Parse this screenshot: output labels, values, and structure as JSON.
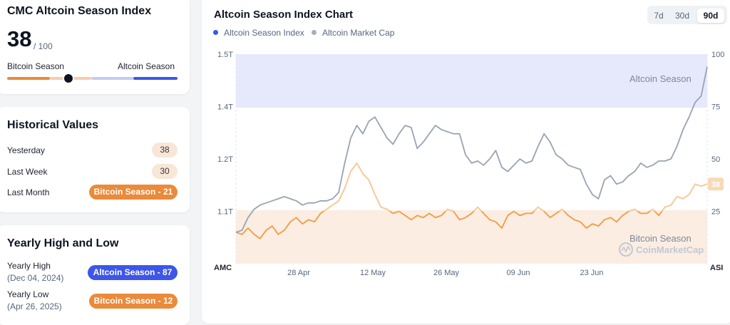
{
  "index_card": {
    "title": "CMC Altcoin Season Index",
    "value": "38",
    "denominator": "/ 100",
    "left_label": "Bitcoin Season",
    "right_label": "Altcoin Season",
    "gauge_value": 38
  },
  "historical": {
    "title": "Historical Values",
    "rows": [
      {
        "label": "Yesterday",
        "value": "38"
      },
      {
        "label": "Last Week",
        "value": "30"
      },
      {
        "label": "Last Month",
        "value": "Bitcoin Season - 21"
      }
    ]
  },
  "yearly": {
    "title": "Yearly High and Low",
    "high": {
      "label": "Yearly High",
      "date": "(Dec 04, 2024)",
      "value": "Altcoin Season - 87"
    },
    "low": {
      "label": "Yearly Low",
      "date": "(Apr 26, 2025)",
      "value": "Bitcoin Season - 12"
    }
  },
  "chart": {
    "title": "Altcoin Season Index Chart",
    "tabs": [
      "7d",
      "30d",
      "90d"
    ],
    "active_tab": "90d",
    "legend": [
      "Altcoin Season Index",
      "Altcoin Market Cap"
    ],
    "zone_top_label": "Altcoin Season",
    "zone_bottom_label": "Bitcoin Season",
    "watermark": "CoinMarketCap",
    "left_axis_name": "AMC",
    "right_axis_name": "ASI",
    "current_badge": "38"
  },
  "colors": {
    "bitcoin": "#ea8a3a",
    "altcoin": "#3d56e8",
    "index_line": "#f29b3f",
    "mcap_line": "#98a3b3"
  },
  "chart_data": {
    "type": "line",
    "x_ticks": [
      "28 Apr",
      "12 May",
      "26 May",
      "09 Jun",
      "23 Jun"
    ],
    "left_axis": {
      "label": "AMC",
      "ticks": [
        "1.5T",
        "1.4T",
        "1.2T",
        "1.1T"
      ],
      "range": [
        1.0,
        1.5
      ]
    },
    "right_axis": {
      "label": "ASI",
      "ticks": [
        "100",
        "75",
        "50",
        "25"
      ],
      "range": [
        0,
        100
      ]
    },
    "zones": [
      {
        "name": "Altcoin Season",
        "from": 75,
        "to": 100
      },
      {
        "name": "Bitcoin Season",
        "from": 0,
        "to": 25
      }
    ],
    "series": [
      {
        "name": "Altcoin Season Index",
        "axis": "right",
        "values": [
          15,
          14,
          17,
          14,
          12,
          16,
          18,
          14,
          16,
          20,
          22,
          19,
          21,
          20,
          24,
          26,
          28,
          30,
          36,
          44,
          48,
          43,
          40,
          33,
          27,
          26,
          24,
          25,
          23,
          21,
          23,
          22,
          24,
          22,
          23,
          26,
          25,
          21,
          22,
          24,
          27,
          24,
          21,
          20,
          17,
          23,
          25,
          23,
          24,
          24,
          27,
          25,
          22,
          24,
          26,
          23,
          21,
          20,
          17,
          19,
          18,
          21,
          22,
          20,
          23,
          25,
          26,
          24,
          24,
          26,
          23,
          27,
          28,
          32,
          31,
          33,
          38,
          37,
          38
        ]
      },
      {
        "name": "Altcoin Market Cap",
        "axis": "right",
        "values": [
          15,
          16,
          22,
          26,
          28,
          29,
          30,
          31,
          32,
          31,
          30,
          28,
          29,
          29,
          30,
          30,
          31,
          34,
          48,
          60,
          66,
          62,
          68,
          70,
          65,
          60,
          57,
          62,
          66,
          65,
          55,
          58,
          62,
          66,
          64,
          63,
          62,
          62,
          52,
          48,
          49,
          47,
          50,
          54,
          46,
          44,
          47,
          50,
          48,
          49,
          56,
          62,
          58,
          52,
          50,
          47,
          46,
          45,
          38,
          33,
          31,
          40,
          42,
          38,
          39,
          42,
          44,
          48,
          46,
          47,
          49,
          49,
          50,
          56,
          64,
          70,
          77,
          80,
          94
        ]
      }
    ]
  }
}
